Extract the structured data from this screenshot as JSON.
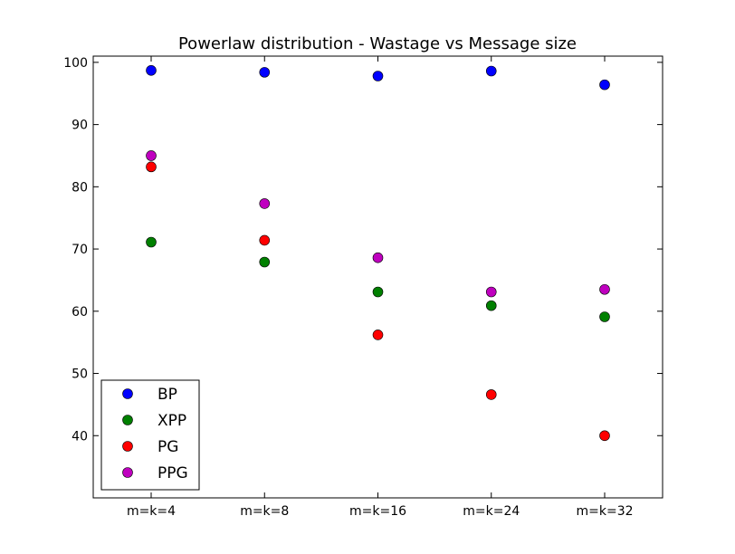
{
  "chart_data": {
    "type": "scatter",
    "title": "Powerlaw distribution - Wastage vs Message size",
    "xlabel": "",
    "ylabel": "",
    "categories": [
      "m=k=4",
      "m=k=8",
      "m=k=16",
      "m=k=24",
      "m=k=32"
    ],
    "ylim": [
      30,
      101
    ],
    "yticks": [
      40,
      50,
      60,
      70,
      80,
      90,
      100
    ],
    "grid": false,
    "legend_position": "bottom-left",
    "series": [
      {
        "name": "BP",
        "color": "#0000ff",
        "values": [
          98.7,
          98.4,
          97.8,
          98.6,
          96.4
        ]
      },
      {
        "name": "XPP",
        "color": "#008000",
        "values": [
          71.1,
          67.9,
          63.1,
          60.9,
          59.1
        ]
      },
      {
        "name": "PG",
        "color": "#ff0000",
        "values": [
          83.2,
          71.4,
          56.2,
          46.6,
          40.0
        ]
      },
      {
        "name": "PPG",
        "color": "#bf00bf",
        "values": [
          85.0,
          77.3,
          68.6,
          63.1,
          63.5
        ]
      }
    ]
  }
}
